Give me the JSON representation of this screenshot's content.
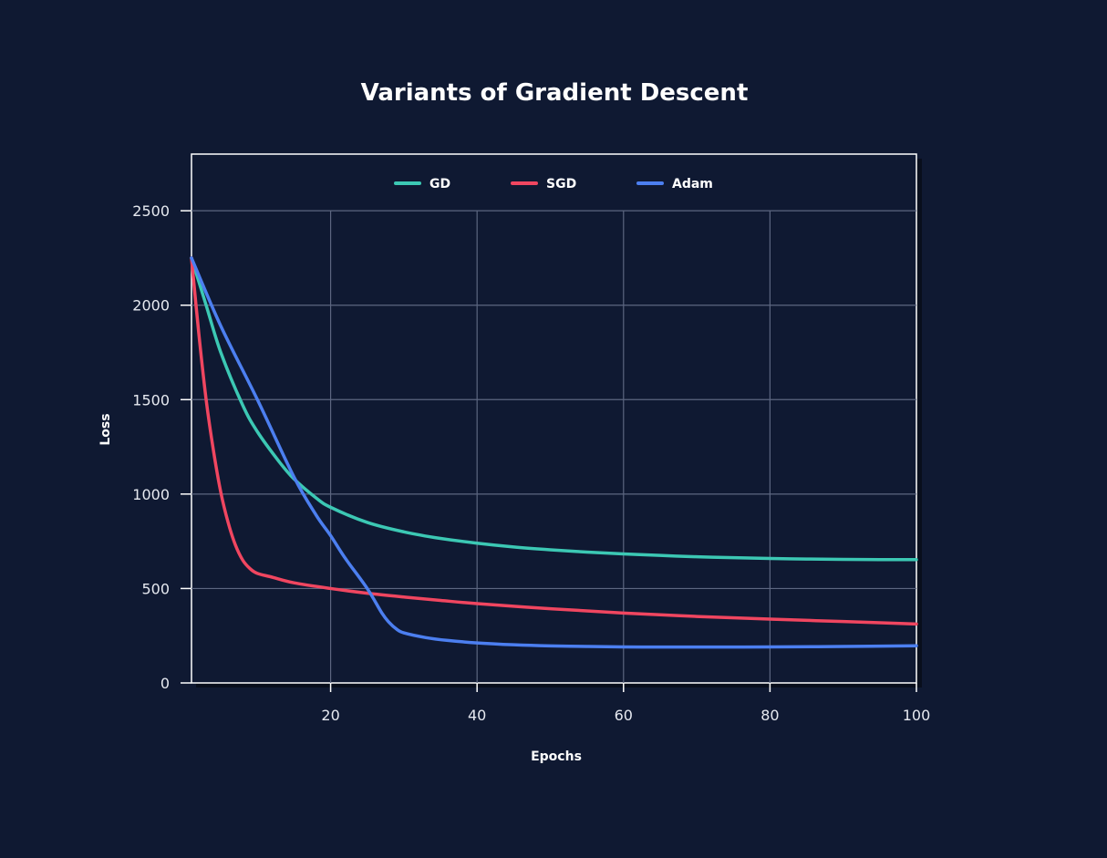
{
  "chart_data": {
    "type": "line",
    "title": "Variants of Gradient Descent",
    "xlabel": "Epochs",
    "ylabel": "Loss",
    "xlim": [
      1,
      100
    ],
    "ylim": [
      0,
      2800
    ],
    "xticks": [
      20,
      40,
      60,
      80,
      100
    ],
    "yticks": [
      0,
      500,
      1000,
      1500,
      2000,
      2500
    ],
    "grid": true,
    "legend_position": "top-center",
    "colors": {
      "background": "#0f1932",
      "plot_background": "#0f1932",
      "frame": "#ffffff",
      "grid": "#5c6680"
    },
    "series": [
      {
        "name": "GD",
        "color": "#3cc8b4",
        "x": [
          1,
          3,
          5,
          8,
          10,
          13,
          15,
          18,
          20,
          25,
          30,
          35,
          40,
          45,
          50,
          55,
          60,
          65,
          70,
          75,
          80,
          85,
          90,
          95,
          100
        ],
        "y": [
          2250,
          2000,
          1750,
          1470,
          1330,
          1170,
          1080,
          980,
          930,
          850,
          800,
          765,
          740,
          720,
          705,
          693,
          683,
          675,
          668,
          663,
          659,
          656,
          654,
          653,
          653
        ]
      },
      {
        "name": "SGD",
        "color": "#f04660",
        "x": [
          1,
          2,
          3,
          4,
          5,
          6,
          7,
          8,
          9,
          10,
          12,
          15,
          20,
          25,
          30,
          35,
          40,
          50,
          60,
          70,
          80,
          90,
          100
        ],
        "y": [
          2250,
          1850,
          1500,
          1230,
          1010,
          850,
          730,
          650,
          605,
          580,
          560,
          530,
          500,
          475,
          455,
          437,
          420,
          393,
          370,
          352,
          338,
          325,
          312
        ]
      },
      {
        "name": "Adam",
        "color": "#4c7ff0",
        "x": [
          1,
          5,
          10,
          15,
          18,
          20,
          22,
          25,
          27,
          28,
          29,
          30,
          33,
          36,
          40,
          45,
          50,
          55,
          60,
          65,
          70,
          75,
          80,
          90,
          100
        ],
        "y": [
          2250,
          1890,
          1500,
          1090,
          890,
          780,
          660,
          500,
          370,
          320,
          285,
          265,
          240,
          225,
          212,
          202,
          196,
          193,
          191,
          190,
          190,
          190,
          191,
          193,
          197
        ]
      }
    ]
  }
}
